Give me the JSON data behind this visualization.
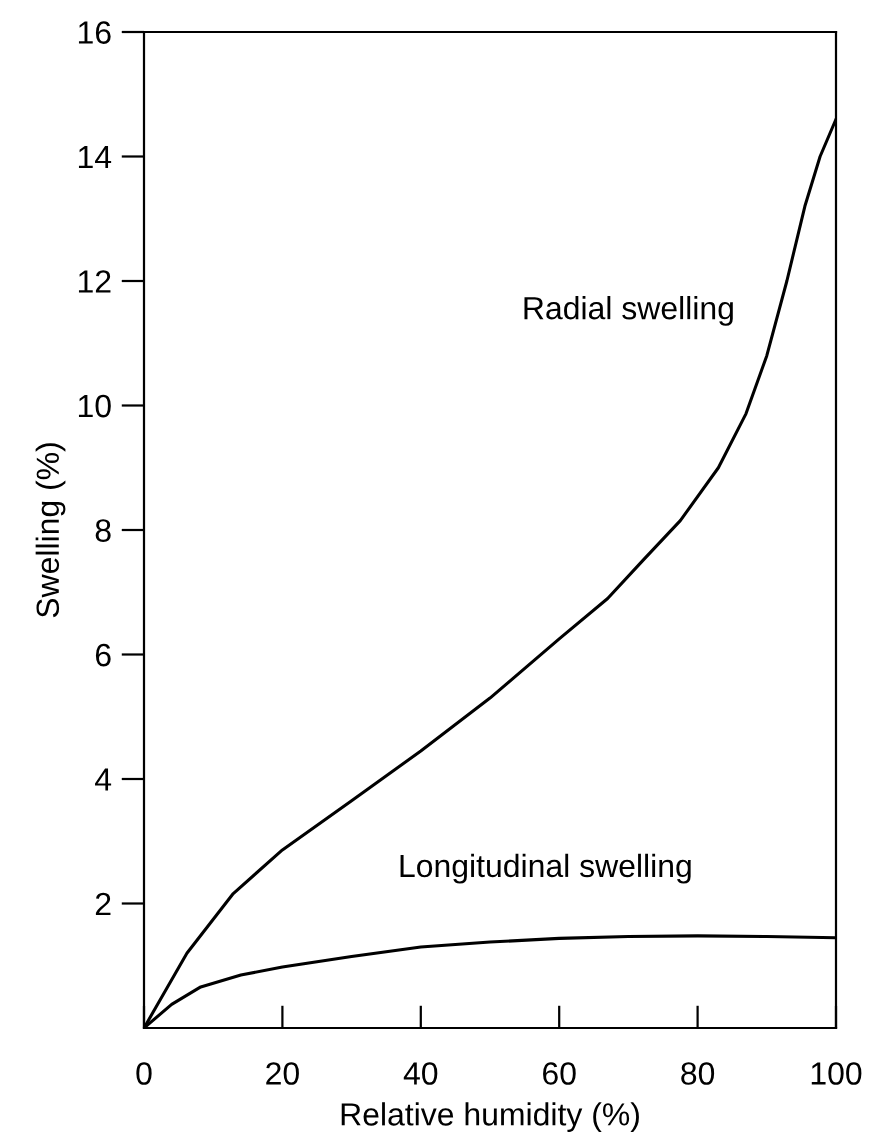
{
  "chart_data": {
    "type": "line",
    "xlabel": "Relative humidity (%)",
    "ylabel": "Swelling (%)",
    "xlim": [
      0,
      100
    ],
    "ylim": [
      0,
      16
    ],
    "xticks": [
      0,
      20,
      40,
      60,
      80,
      100
    ],
    "yticks": [
      2,
      4,
      6,
      8,
      10,
      12,
      14,
      16
    ],
    "grid": false,
    "legend": false,
    "marker": "none",
    "line_style": "solid",
    "series": [
      {
        "name": "Radial swelling",
        "color": "#000000",
        "x": [
          0,
          6.2,
          12.9,
          20,
          30,
          40,
          50,
          60,
          67,
          72,
          77.5,
          83,
          87,
          90,
          92.9,
          95.5,
          97.7,
          100
        ],
        "values": [
          0,
          1.2,
          2.16,
          2.86,
          3.65,
          4.45,
          5.3,
          6.25,
          6.9,
          7.5,
          8.15,
          9.0,
          9.87,
          10.8,
          12.0,
          13.2,
          14.0,
          14.6
        ]
      },
      {
        "name": "Longitudinal swelling",
        "color": "#000000",
        "x": [
          0,
          4,
          8.2,
          14,
          20,
          30,
          40,
          50,
          60,
          70,
          80,
          90,
          100
        ],
        "values": [
          0,
          0.38,
          0.66,
          0.85,
          0.98,
          1.15,
          1.3,
          1.38,
          1.44,
          1.47,
          1.48,
          1.47,
          1.45
        ]
      }
    ]
  }
}
